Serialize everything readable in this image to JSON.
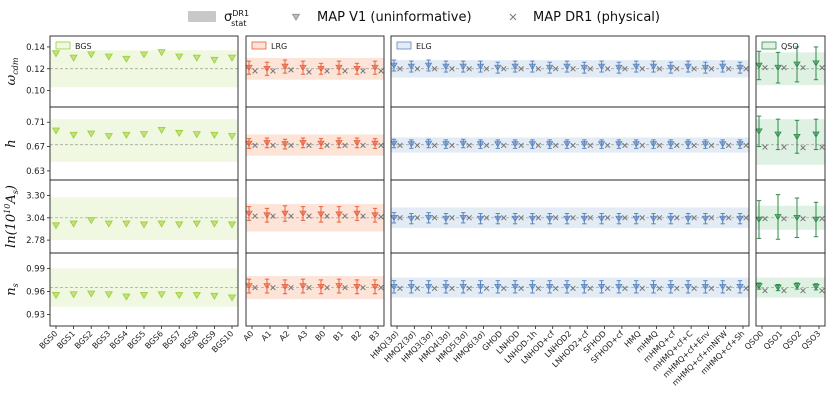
{
  "legend": {
    "stat_label": "σ_stat^DR1",
    "stat_base": "σ",
    "stat_sup": "DR1",
    "stat_sub": "stat",
    "map_v1_label": "MAP V1 (uninformative)",
    "map_dr1_label": "MAP DR1 (physical)"
  },
  "colors": {
    "BGS": "#9acd32",
    "LRG": "#e8603c",
    "ELG": "#5b86c0",
    "QSO": "#2e8b4a",
    "BGS_band": "#f1f8e2",
    "LRG_band": "#fde4d9",
    "ELG_band": "#e3ebf5",
    "QSO_band": "#dff1e3",
    "legend_band": "#c8c8c8",
    "truth_line": "#999999",
    "cross": "#777777"
  },
  "chart_data": {
    "type": "scatter",
    "panels": [
      {
        "name": "BGS",
        "categories": [
          "BGS0",
          "BGS1",
          "BGS2",
          "BGS3",
          "BGS4",
          "BGS5",
          "BGS6",
          "BGS7",
          "BGS8",
          "BGS9",
          "BGS10"
        ]
      },
      {
        "name": "LRG",
        "categories": [
          "A0",
          "A1",
          "A2",
          "A3",
          "B0",
          "B1",
          "B2",
          "B3"
        ]
      },
      {
        "name": "ELG",
        "categories": [
          "HMQ(3σ)",
          "HMQ2(3σ)",
          "HMQ3(3σ)",
          "HMQ4(3σ)",
          "HMQ5(3σ)",
          "HMQ6(3σ)",
          "GHOD",
          "LNHOD",
          "LNHOD-1h",
          "LNHOD+cf",
          "LNHOD2",
          "LNHOD2+cf",
          "SFHOD",
          "SFHOD+cf",
          "HMQ",
          "mHMQ",
          "mHMQ+cf",
          "mHMQ+cf+C",
          "mHMQ+cf+Env",
          "mHMQ+cf+mNFW",
          "mHMQ+cf+Sh"
        ]
      },
      {
        "name": "QSO",
        "categories": [
          "QSO0",
          "QSO1",
          "QSO2",
          "QSO3"
        ]
      }
    ],
    "parameters": [
      {
        "name": "omega_cdm",
        "label": "ω_cdm",
        "label_base": "ω",
        "label_sub": "cdm",
        "ylim": [
          0.085,
          0.15
        ],
        "ticks": [
          "0.14",
          "0.12",
          "0.10"
        ],
        "tick_values": [
          0.14,
          0.12,
          0.1
        ],
        "truth": 0.12,
        "bands": {
          "BGS": [
            0.103,
            0.137
          ],
          "LRG": [
            0.11,
            0.13
          ],
          "ELG": [
            0.112,
            0.128
          ],
          "QSO": [
            0.105,
            0.135
          ]
        },
        "BGS": {
          "v1": [
            0.134,
            0.13,
            0.133,
            0.131,
            0.129,
            0.133,
            0.135,
            0.131,
            0.13,
            0.128,
            0.13
          ]
        },
        "LRG": {
          "v1": [
            0.121,
            0.12,
            0.122,
            0.121,
            0.12,
            0.121,
            0.12,
            0.121
          ],
          "v1_err": [
            0.006,
            0.006,
            0.006,
            0.006,
            0.005,
            0.006,
            0.005,
            0.006
          ],
          "dr1": [
            0.118,
            0.118,
            0.119,
            0.117,
            0.118,
            0.118,
            0.118,
            0.118
          ]
        },
        "ELG": {
          "v1": [
            0.123,
            0.122,
            0.123,
            0.122,
            0.122,
            0.122,
            0.121,
            0.122,
            0.122,
            0.121,
            0.122,
            0.121,
            0.122,
            0.121,
            0.122,
            0.122,
            0.121,
            0.122,
            0.121,
            0.122,
            0.121
          ],
          "v1_err": [
            0.005,
            0.005,
            0.005,
            0.005,
            0.005,
            0.005,
            0.005,
            0.005,
            0.005,
            0.005,
            0.005,
            0.005,
            0.005,
            0.005,
            0.005,
            0.005,
            0.005,
            0.005,
            0.005,
            0.005,
            0.005
          ],
          "dr1": [
            0.12,
            0.12,
            0.12,
            0.12,
            0.12,
            0.12,
            0.12,
            0.12,
            0.12,
            0.12,
            0.12,
            0.12,
            0.12,
            0.12,
            0.12,
            0.12,
            0.12,
            0.12,
            0.12,
            0.12,
            0.12
          ]
        },
        "QSO": {
          "v1": [
            0.123,
            0.121,
            0.124,
            0.125
          ],
          "v1_err": [
            0.013,
            0.014,
            0.016,
            0.015
          ],
          "dr1": [
            0.121,
            0.121,
            0.121,
            0.121
          ]
        }
      },
      {
        "name": "h",
        "label": "h",
        "label_base": "h",
        "label_sub": "",
        "ylim": [
          0.615,
          0.735
        ],
        "ticks": [
          "0.71",
          "0.67",
          "0.63"
        ],
        "tick_values": [
          0.71,
          0.67,
          0.63
        ],
        "truth": 0.673,
        "bands": {
          "BGS": [
            0.645,
            0.715
          ],
          "LRG": [
            0.655,
            0.69
          ],
          "ELG": [
            0.66,
            0.685
          ],
          "QSO": [
            0.64,
            0.715
          ]
        },
        "BGS": {
          "v1": [
            0.696,
            0.689,
            0.691,
            0.687,
            0.689,
            0.69,
            0.697,
            0.692,
            0.69,
            0.689,
            0.687
          ]
        },
        "LRG": {
          "v1": [
            0.675,
            0.676,
            0.674,
            0.676,
            0.675,
            0.676,
            0.676,
            0.675
          ],
          "v1_err": [
            0.008,
            0.008,
            0.008,
            0.008,
            0.008,
            0.008,
            0.008,
            0.008
          ],
          "dr1": [
            0.672,
            0.672,
            0.672,
            0.672,
            0.672,
            0.672,
            0.672,
            0.672
          ]
        },
        "ELG": {
          "v1": [
            0.675,
            0.674,
            0.675,
            0.674,
            0.675,
            0.674,
            0.674,
            0.674,
            0.674,
            0.674,
            0.674,
            0.674,
            0.674,
            0.674,
            0.674,
            0.674,
            0.674,
            0.674,
            0.674,
            0.674,
            0.674
          ],
          "v1_err": [
            0.007,
            0.007,
            0.007,
            0.007,
            0.007,
            0.007,
            0.007,
            0.007,
            0.007,
            0.007,
            0.007,
            0.007,
            0.007,
            0.007,
            0.007,
            0.007,
            0.007,
            0.007,
            0.007,
            0.007,
            0.007
          ],
          "dr1": [
            0.672,
            0.672,
            0.672,
            0.672,
            0.672,
            0.672,
            0.672,
            0.672,
            0.672,
            0.672,
            0.672,
            0.672,
            0.672,
            0.672,
            0.672,
            0.672,
            0.672,
            0.672,
            0.672,
            0.672,
            0.672
          ]
        },
        "QSO": {
          "v1": [
            0.695,
            0.69,
            0.686,
            0.69
          ],
          "v1_err": [
            0.025,
            0.025,
            0.027,
            0.025
          ],
          "dr1": [
            0.669,
            0.669,
            0.668,
            0.669
          ]
        }
      },
      {
        "name": "ln10As",
        "label": "ln(10^10 A_s)",
        "label_base": "ln(10",
        "label_sup": "10",
        "label_mid": "A",
        "label_sub": "s",
        "label_end": ")",
        "ylim": [
          2.63,
          3.48
        ],
        "ticks": [
          "3.30",
          "3.04",
          "2.78"
        ],
        "tick_values": [
          3.3,
          3.04,
          2.78
        ],
        "truth": 3.04,
        "bands": {
          "BGS": [
            2.78,
            3.28
          ],
          "LRG": [
            2.88,
            3.2
          ],
          "ELG": [
            2.92,
            3.16
          ],
          "QSO": [
            2.9,
            3.18
          ]
        },
        "BGS": {
          "v1": [
            2.95,
            2.97,
            3.01,
            2.97,
            2.97,
            2.96,
            2.97,
            2.96,
            2.97,
            2.97,
            2.96
          ]
        },
        "LRG": {
          "v1": [
            3.09,
            3.07,
            3.09,
            3.09,
            3.08,
            3.08,
            3.09,
            3.07
          ],
          "v1_err": [
            0.08,
            0.08,
            0.09,
            0.08,
            0.09,
            0.09,
            0.08,
            0.08
          ],
          "dr1": [
            3.06,
            3.06,
            3.06,
            3.06,
            3.06,
            3.06,
            3.06,
            3.05
          ]
        },
        "ELG": {
          "v1": [
            3.04,
            3.03,
            3.04,
            3.03,
            3.04,
            3.03,
            3.03,
            3.03,
            3.03,
            3.03,
            3.03,
            3.03,
            3.03,
            3.03,
            3.03,
            3.03,
            3.03,
            3.03,
            3.03,
            3.03,
            3.03
          ],
          "v1_err": [
            0.06,
            0.06,
            0.06,
            0.06,
            0.06,
            0.06,
            0.06,
            0.06,
            0.06,
            0.06,
            0.06,
            0.06,
            0.06,
            0.06,
            0.06,
            0.06,
            0.06,
            0.06,
            0.06,
            0.06,
            0.06
          ],
          "dr1": [
            3.04,
            3.04,
            3.04,
            3.04,
            3.04,
            3.04,
            3.04,
            3.04,
            3.04,
            3.04,
            3.04,
            3.04,
            3.04,
            3.04,
            3.04,
            3.04,
            3.04,
            3.04,
            3.04,
            3.04,
            3.04
          ]
        },
        "QSO": {
          "v1": [
            3.02,
            3.05,
            3.04,
            3.02
          ],
          "v1_err": [
            0.22,
            0.26,
            0.23,
            0.2
          ],
          "dr1": [
            3.03,
            3.03,
            3.03,
            3.03
          ]
        }
      },
      {
        "name": "n_s",
        "label": "n_s",
        "label_base": "n",
        "label_sub": "s",
        "ylim": [
          0.915,
          1.01
        ],
        "ticks": [
          "0.99",
          "0.96",
          "0.93"
        ],
        "tick_values": [
          0.99,
          0.96,
          0.93
        ],
        "truth": 0.965,
        "bands": {
          "BGS": [
            0.94,
            0.99
          ],
          "LRG": [
            0.95,
            0.98
          ],
          "ELG": [
            0.952,
            0.978
          ],
          "QSO": [
            0.952,
            0.978
          ]
        },
        "BGS": {
          "v1": [
            0.955,
            0.956,
            0.957,
            0.956,
            0.953,
            0.955,
            0.956,
            0.955,
            0.955,
            0.954,
            0.952
          ]
        },
        "LRG": {
          "v1": [
            0.967,
            0.967,
            0.966,
            0.967,
            0.966,
            0.967,
            0.966,
            0.966
          ],
          "v1_err": [
            0.009,
            0.009,
            0.009,
            0.009,
            0.009,
            0.009,
            0.009,
            0.009
          ],
          "dr1": [
            0.965,
            0.965,
            0.965,
            0.965,
            0.965,
            0.965,
            0.965,
            0.965
          ]
        },
        "ELG": {
          "v1": [
            0.966,
            0.966,
            0.966,
            0.966,
            0.966,
            0.966,
            0.966,
            0.966,
            0.966,
            0.966,
            0.966,
            0.966,
            0.966,
            0.966,
            0.966,
            0.966,
            0.966,
            0.966,
            0.966,
            0.966,
            0.966
          ],
          "v1_err": [
            0.008,
            0.008,
            0.008,
            0.008,
            0.008,
            0.008,
            0.008,
            0.008,
            0.008,
            0.008,
            0.008,
            0.008,
            0.008,
            0.008,
            0.008,
            0.008,
            0.008,
            0.008,
            0.008,
            0.008,
            0.008
          ],
          "dr1": [
            0.964,
            0.964,
            0.964,
            0.964,
            0.964,
            0.964,
            0.964,
            0.964,
            0.964,
            0.964,
            0.964,
            0.964,
            0.964,
            0.964,
            0.964,
            0.964,
            0.964,
            0.964,
            0.964,
            0.964,
            0.964
          ]
        },
        "QSO": {
          "v1": [
            0.967,
            0.965,
            0.967,
            0.966
          ],
          "v1_err": [
            0.004,
            0.004,
            0.004,
            0.004
          ],
          "dr1": [
            0.961,
            0.961,
            0.961,
            0.961
          ]
        }
      }
    ]
  }
}
